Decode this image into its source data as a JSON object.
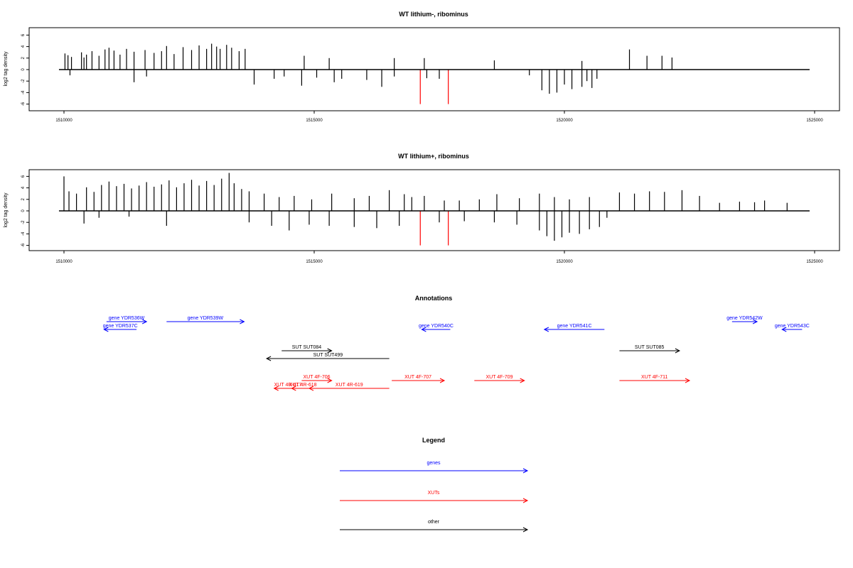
{
  "chart_data": [
    {
      "type": "bar",
      "title": "WT lithium-, ribominus",
      "ylabel": "log2 tag density",
      "xlim": [
        1509800,
        1525400
      ],
      "ylim": [
        -6,
        7
      ],
      "x_ticks": [
        1510000,
        1515000,
        1520000,
        1525000
      ],
      "y_ticks": [
        -6,
        -4,
        -2,
        0,
        2,
        4,
        6
      ],
      "track_range": [
        1509900,
        1524900
      ],
      "gridlines": false,
      "series": [
        {
          "color": "#000000",
          "values": [
            [
              1510020,
              2.8
            ],
            [
              1510080,
              2.5
            ],
            [
              1510150,
              2.2
            ],
            [
              1510350,
              3.0
            ],
            [
              1510400,
              2.1
            ],
            [
              1510450,
              2.6
            ],
            [
              1510560,
              3.2
            ],
            [
              1510700,
              2.4
            ],
            [
              1510820,
              3.5
            ],
            [
              1510900,
              3.8
            ],
            [
              1511000,
              3.3
            ],
            [
              1511120,
              2.6
            ],
            [
              1511250,
              3.6
            ],
            [
              1511400,
              3.1
            ],
            [
              1511620,
              3.4
            ],
            [
              1511800,
              2.9
            ],
            [
              1511950,
              3.2
            ],
            [
              1512050,
              4.1
            ],
            [
              1512200,
              2.7
            ],
            [
              1512380,
              3.9
            ],
            [
              1512550,
              3.4
            ],
            [
              1512700,
              4.2
            ],
            [
              1512850,
              3.6
            ],
            [
              1512950,
              4.5
            ],
            [
              1513050,
              4.0
            ],
            [
              1513120,
              3.6
            ],
            [
              1513250,
              4.3
            ],
            [
              1513350,
              3.8
            ],
            [
              1513500,
              3.2
            ],
            [
              1513620,
              3.6
            ],
            [
              1514800,
              2.4
            ],
            [
              1515300,
              2.0
            ],
            [
              1516600,
              2.0
            ],
            [
              1517200,
              2.0
            ],
            [
              1518600,
              1.6
            ],
            [
              1520350,
              1.5
            ],
            [
              1521300,
              3.5
            ],
            [
              1521650,
              2.4
            ],
            [
              1521950,
              2.4
            ],
            [
              1522150,
              2.1
            ],
            [
              1510120,
              -1.0
            ],
            [
              1511400,
              -2.2
            ],
            [
              1511650,
              -1.2
            ],
            [
              1513800,
              -2.6
            ],
            [
              1514200,
              -1.6
            ],
            [
              1514400,
              -1.2
            ],
            [
              1514750,
              -2.8
            ],
            [
              1515050,
              -1.4
            ],
            [
              1515400,
              -2.2
            ],
            [
              1515550,
              -1.6
            ],
            [
              1516050,
              -1.8
            ],
            [
              1516350,
              -3.0
            ],
            [
              1516600,
              -1.2
            ],
            [
              1517250,
              -1.5
            ],
            [
              1517500,
              -1.6
            ],
            [
              1519300,
              -1.0
            ],
            [
              1519550,
              -3.6
            ],
            [
              1519700,
              -4.2
            ],
            [
              1519850,
              -4.0
            ],
            [
              1520000,
              -2.6
            ],
            [
              1520150,
              -3.4
            ],
            [
              1520350,
              -3.0
            ],
            [
              1520450,
              -2.0
            ],
            [
              1520550,
              -3.2
            ],
            [
              1520650,
              -1.6
            ]
          ]
        },
        {
          "color": "#ff0000",
          "values": [
            [
              1517120,
              -6.0
            ],
            [
              1517680,
              -6.0
            ]
          ]
        }
      ]
    },
    {
      "type": "bar",
      "title": "WT lithium+, ribominus",
      "ylabel": "log2 tag density",
      "xlim": [
        1509800,
        1525400
      ],
      "ylim": [
        -6,
        7
      ],
      "x_ticks": [
        1510000,
        1515000,
        1520000,
        1525000
      ],
      "y_ticks": [
        -6,
        -4,
        -2,
        0,
        2,
        4,
        6
      ],
      "track_range": [
        1509900,
        1524900
      ],
      "gridlines": false,
      "series": [
        {
          "color": "#000000",
          "values": [
            [
              1510000,
              6.0
            ],
            [
              1510100,
              3.4
            ],
            [
              1510250,
              3.0
            ],
            [
              1510450,
              4.1
            ],
            [
              1510600,
              3.3
            ],
            [
              1510750,
              4.5
            ],
            [
              1510900,
              5.1
            ],
            [
              1511050,
              4.3
            ],
            [
              1511200,
              4.7
            ],
            [
              1511350,
              3.9
            ],
            [
              1511500,
              4.4
            ],
            [
              1511650,
              5.0
            ],
            [
              1511800,
              4.2
            ],
            [
              1511950,
              4.6
            ],
            [
              1512100,
              5.3
            ],
            [
              1512250,
              4.1
            ],
            [
              1512400,
              4.8
            ],
            [
              1512550,
              5.4
            ],
            [
              1512700,
              4.4
            ],
            [
              1512850,
              5.2
            ],
            [
              1513000,
              4.5
            ],
            [
              1513150,
              5.6
            ],
            [
              1513300,
              6.6
            ],
            [
              1513400,
              4.8
            ],
            [
              1513550,
              3.8
            ],
            [
              1513700,
              3.4
            ],
            [
              1514000,
              3.0
            ],
            [
              1514300,
              2.4
            ],
            [
              1514600,
              2.6
            ],
            [
              1514950,
              2.0
            ],
            [
              1515350,
              3.0
            ],
            [
              1515800,
              2.2
            ],
            [
              1516100,
              2.6
            ],
            [
              1516500,
              3.6
            ],
            [
              1516800,
              2.9
            ],
            [
              1516950,
              2.4
            ],
            [
              1517200,
              2.6
            ],
            [
              1517600,
              1.8
            ],
            [
              1517900,
              1.8
            ],
            [
              1518300,
              2.0
            ],
            [
              1518650,
              2.9
            ],
            [
              1519100,
              2.2
            ],
            [
              1519500,
              3.0
            ],
            [
              1519800,
              2.4
            ],
            [
              1520100,
              2.0
            ],
            [
              1520500,
              2.4
            ],
            [
              1521100,
              3.2
            ],
            [
              1521400,
              3.0
            ],
            [
              1521700,
              3.4
            ],
            [
              1522000,
              3.3
            ],
            [
              1522350,
              3.6
            ],
            [
              1522700,
              2.6
            ],
            [
              1523100,
              1.4
            ],
            [
              1523500,
              1.6
            ],
            [
              1523800,
              1.5
            ],
            [
              1524000,
              1.8
            ],
            [
              1524450,
              1.4
            ],
            [
              1510400,
              -2.2
            ],
            [
              1510700,
              -1.2
            ],
            [
              1511300,
              -1.0
            ],
            [
              1512050,
              -2.6
            ],
            [
              1513700,
              -2.0
            ],
            [
              1514150,
              -2.6
            ],
            [
              1514500,
              -3.4
            ],
            [
              1514900,
              -2.4
            ],
            [
              1515300,
              -2.6
            ],
            [
              1515800,
              -2.8
            ],
            [
              1516250,
              -3.0
            ],
            [
              1516700,
              -2.6
            ],
            [
              1517500,
              -2.0
            ],
            [
              1518000,
              -1.8
            ],
            [
              1518600,
              -2.0
            ],
            [
              1519050,
              -2.4
            ],
            [
              1519500,
              -3.4
            ],
            [
              1519650,
              -4.4
            ],
            [
              1519800,
              -5.2
            ],
            [
              1519950,
              -4.6
            ],
            [
              1520100,
              -3.8
            ],
            [
              1520300,
              -4.0
            ],
            [
              1520500,
              -3.2
            ],
            [
              1520700,
              -2.8
            ],
            [
              1520850,
              -1.2
            ]
          ]
        },
        {
          "color": "#ff0000",
          "values": [
            [
              1517120,
              -6.0
            ],
            [
              1517680,
              -6.0
            ]
          ]
        }
      ]
    }
  ],
  "annotations": {
    "title": "Annotations",
    "items": [
      {
        "label": "gene YDR536W",
        "start": 1510850,
        "end": 1511650,
        "row": 0,
        "dir": "+",
        "color": "#0000ff"
      },
      {
        "label": "gene YDR537C",
        "start": 1510800,
        "end": 1511450,
        "row": 1,
        "dir": "-",
        "color": "#0000ff"
      },
      {
        "label": "gene YDR539W",
        "start": 1512050,
        "end": 1513600,
        "row": 0,
        "dir": "+",
        "color": "#0000ff"
      },
      {
        "label": "gene YDR540C",
        "start": 1517150,
        "end": 1517720,
        "row": 1,
        "dir": "-",
        "color": "#0000ff"
      },
      {
        "label": "gene YDR541C",
        "start": 1519600,
        "end": 1520800,
        "row": 1,
        "dir": "-",
        "color": "#0000ff"
      },
      {
        "label": "gene YDR542W",
        "start": 1523350,
        "end": 1523850,
        "row": 0,
        "dir": "+",
        "color": "#0000ff"
      },
      {
        "label": "gene YDR543C",
        "start": 1524350,
        "end": 1524750,
        "row": 1,
        "dir": "-",
        "color": "#0000ff"
      },
      {
        "label": "SUT SUT084",
        "start": 1514350,
        "end": 1515350,
        "row": 3,
        "dir": "+",
        "color": "#000000"
      },
      {
        "label": "SUT SUT499",
        "start": 1514050,
        "end": 1516500,
        "row": 4,
        "dir": "-",
        "color": "#000000"
      },
      {
        "label": "SUT SUT085",
        "start": 1521100,
        "end": 1522300,
        "row": 3,
        "dir": "+",
        "color": "#000000"
      },
      {
        "label": "XUT 4F-706",
        "start": 1514750,
        "end": 1515350,
        "row": 6,
        "dir": "+",
        "color": "#ff0000"
      },
      {
        "label": "XUT 4F-707",
        "start": 1516550,
        "end": 1517600,
        "row": 6,
        "dir": "+",
        "color": "#ff0000"
      },
      {
        "label": "XUT 4F-709",
        "start": 1518200,
        "end": 1519200,
        "row": 6,
        "dir": "+",
        "color": "#ff0000"
      },
      {
        "label": "XUT 4F-711",
        "start": 1521100,
        "end": 1522500,
        "row": 6,
        "dir": "+",
        "color": "#ff0000"
      },
      {
        "label": "XUT 4R-617",
        "start": 1514200,
        "end": 1514750,
        "row": 7,
        "dir": "-",
        "color": "#ff0000"
      },
      {
        "label": "XUT 4R-618",
        "start": 1514550,
        "end": 1515000,
        "row": 7,
        "dir": "-",
        "color": "#ff0000"
      },
      {
        "label": "XUT 4R-619",
        "start": 1514900,
        "end": 1516500,
        "row": 7,
        "dir": "-",
        "color": "#ff0000"
      }
    ]
  },
  "legend": {
    "title": "Legend",
    "items": [
      {
        "label": "genes",
        "color": "#0000ff"
      },
      {
        "label": "XUTs",
        "color": "#ff0000"
      },
      {
        "label": "other",
        "color": "#000000"
      }
    ]
  }
}
